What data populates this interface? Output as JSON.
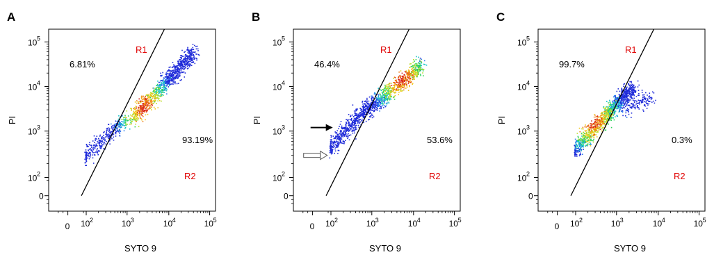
{
  "chart_data": [
    {
      "type": "scatter",
      "panel_label": "A",
      "xlabel": "SYTO 9",
      "ylabel": "PI",
      "x_ticks": [
        "0",
        "10",
        "10",
        "10",
        "10"
      ],
      "x_tick_exps": [
        "",
        "2",
        "3",
        "4",
        "5"
      ],
      "y_ticks": [
        "0",
        "10",
        "10",
        "10",
        "10"
      ],
      "y_tick_exps": [
        "",
        "2",
        "3",
        "4",
        "5"
      ],
      "scale": "biexponential (logicle)",
      "gate_line": {
        "start": [
          30,
          0
        ],
        "end": [
          8000,
          200000
        ]
      },
      "regions": [
        {
          "name": "R1",
          "percent": "6.81%",
          "color": "#e00000"
        },
        {
          "name": "R2",
          "percent": "93.19%",
          "color": "#e00000"
        }
      ],
      "population": [
        {
          "from": [
            1200,
            1800
          ],
          "to": [
            40000,
            60000
          ],
          "weight": 0.75
        },
        {
          "from": [
            70,
            250
          ],
          "to": [
            900,
            1800
          ],
          "weight": 0.25
        }
      ],
      "hotspot": [
        2500,
        3500
      ],
      "arrows": []
    },
    {
      "type": "scatter",
      "panel_label": "B",
      "xlabel": "SYTO 9",
      "ylabel": "PI",
      "x_ticks": [
        "0",
        "10",
        "10",
        "10",
        "10"
      ],
      "x_tick_exps": [
        "",
        "2",
        "3",
        "4",
        "5"
      ],
      "y_ticks": [
        "0",
        "10",
        "10",
        "10",
        "10"
      ],
      "y_tick_exps": [
        "",
        "2",
        "3",
        "4",
        "5"
      ],
      "scale": "biexponential (logicle)",
      "gate_line": {
        "start": [
          30,
          0
        ],
        "end": [
          8000,
          200000
        ]
      },
      "regions": [
        {
          "name": "R1",
          "percent": "46.4%",
          "color": "#e00000"
        },
        {
          "name": "R2",
          "percent": "53.6%",
          "color": "#e00000"
        }
      ],
      "population": [
        {
          "from": [
            80,
            400
          ],
          "to": [
            900,
            4000
          ],
          "weight": 0.4
        },
        {
          "from": [
            800,
            3000
          ],
          "to": [
            15000,
            30000
          ],
          "weight": 0.6
        }
      ],
      "hotspot": [
        5000,
        15000
      ],
      "arrows": [
        {
          "style": "filled",
          "target": [
            130,
            1200
          ]
        },
        {
          "style": "open",
          "target": [
            80,
            300
          ]
        }
      ]
    },
    {
      "type": "scatter",
      "panel_label": "C",
      "xlabel": "SYTO 9",
      "ylabel": "PI",
      "x_ticks": [
        "0",
        "10",
        "10",
        "10",
        "10"
      ],
      "x_tick_exps": [
        "",
        "2",
        "3",
        "4",
        "5"
      ],
      "y_ticks": [
        "0",
        "10",
        "10",
        "10",
        "10"
      ],
      "y_tick_exps": [
        "",
        "2",
        "3",
        "4",
        "5"
      ],
      "scale": "biexponential (logicle)",
      "gate_line": {
        "start": [
          30,
          0
        ],
        "end": [
          8000,
          200000
        ]
      },
      "regions": [
        {
          "name": "R1",
          "percent": "99.7%",
          "color": "#e00000"
        },
        {
          "name": "R2",
          "percent": "0.3%",
          "color": "#e00000"
        }
      ],
      "population": [
        {
          "from": [
            80,
            350
          ],
          "to": [
            2500,
            10000
          ],
          "weight": 0.9
        },
        {
          "from": [
            1500,
            3000
          ],
          "to": [
            6000,
            6000
          ],
          "weight": 0.1
        }
      ],
      "hotspot": [
        250,
        1800
      ],
      "arrows": []
    }
  ]
}
